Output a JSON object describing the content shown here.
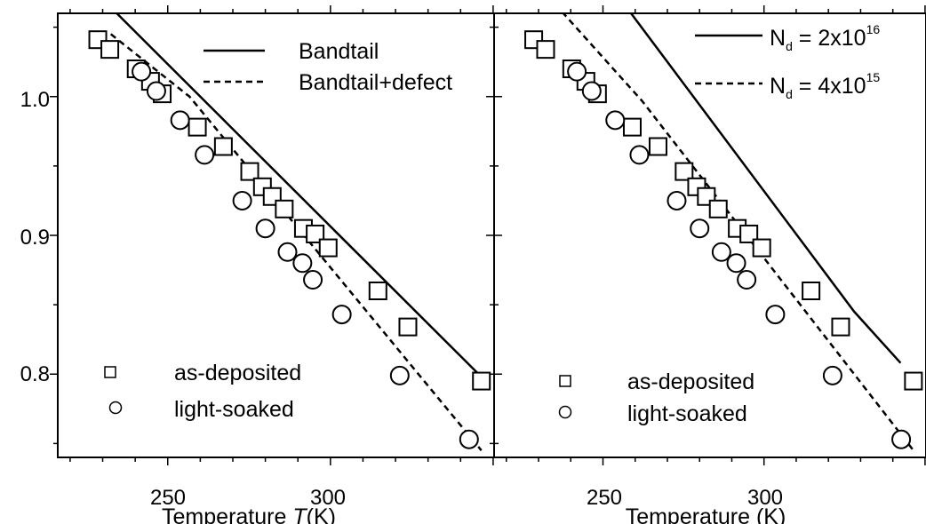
{
  "chart_data": [
    {
      "type": "scatter",
      "panel": "left",
      "xlabel": "Temperature",
      "xlabel_italic_symbol": "T",
      "xlabel_unit": "(K)",
      "ylabel": "",
      "xlim": [
        216.2,
        350.3
      ],
      "ylim": [
        0.74,
        1.06
      ],
      "xticks": [
        250,
        300
      ],
      "yticks": [
        0.8,
        0.9,
        1.0
      ],
      "ytick_labels": [
        "0.8",
        "0.9",
        "1.0"
      ],
      "xtick_labels": [
        "250",
        "300"
      ],
      "series": [
        {
          "name": "as-deposited",
          "marker": "square",
          "x": [
            228.5,
            232.2,
            240.3,
            244.7,
            248.3,
            259.1,
            267.1,
            275.2,
            279.1,
            282.1,
            285.8,
            291.7,
            295.3,
            299.3,
            314.6,
            323.8,
            346.4
          ],
          "y": [
            1.041,
            1.034,
            1.02,
            1.011,
            1.002,
            0.978,
            0.964,
            0.946,
            0.935,
            0.928,
            0.919,
            0.905,
            0.901,
            0.891,
            0.86,
            0.834,
            0.795
          ]
        },
        {
          "name": "light-soaked",
          "marker": "circle",
          "x": [
            241.9,
            246.5,
            253.8,
            261.3,
            272.9,
            280.0,
            286.8,
            291.4,
            294.6,
            303.5,
            321.3,
            342.6
          ],
          "y": [
            1.018,
            1.004,
            0.983,
            0.958,
            0.925,
            0.905,
            0.888,
            0.88,
            0.868,
            0.843,
            0.799,
            0.753
          ]
        }
      ],
      "lines": [
        {
          "name": "Bandtail",
          "style": "solid",
          "x": [
            233.9,
            346.4
          ],
          "y": [
            1.061,
            0.798
          ]
        },
        {
          "name": "Bandtail+defect",
          "style": "dashed",
          "x": [
            232.5,
            256.7,
            346.4
          ],
          "y": [
            1.045,
            1.0,
            0.745
          ]
        }
      ],
      "legend_lines": [
        "Bandtail",
        "Bandtail+defect"
      ],
      "legend_markers": [
        "as-deposited",
        "light-soaked"
      ]
    },
    {
      "type": "scatter",
      "panel": "right",
      "xlabel": "Temperature (K)",
      "ylabel": "",
      "xlim": [
        216.2,
        350.3
      ],
      "ylim": [
        0.74,
        1.06
      ],
      "xticks": [
        250,
        300
      ],
      "xtick_labels": [
        "250",
        "300"
      ],
      "series": [
        {
          "name": "as-deposited",
          "marker": "square",
          "x": [
            228.5,
            232.2,
            240.3,
            244.7,
            248.3,
            259.1,
            267.1,
            275.2,
            279.1,
            282.1,
            285.8,
            291.7,
            295.3,
            299.3,
            314.6,
            323.8,
            346.4
          ],
          "y": [
            1.041,
            1.034,
            1.02,
            1.011,
            1.002,
            0.978,
            0.964,
            0.946,
            0.935,
            0.928,
            0.919,
            0.905,
            0.901,
            0.891,
            0.86,
            0.834,
            0.795
          ]
        },
        {
          "name": "light-soaked",
          "marker": "circle",
          "x": [
            241.9,
            246.5,
            253.8,
            261.3,
            272.9,
            280.0,
            286.8,
            291.4,
            294.6,
            303.5,
            321.3,
            342.6
          ],
          "y": [
            1.018,
            1.004,
            0.983,
            0.958,
            0.925,
            0.905,
            0.888,
            0.88,
            0.868,
            0.843,
            0.799,
            0.753
          ]
        }
      ],
      "lines": [
        {
          "name": "N_d = 2x10^16",
          "style": "solid",
          "x": [
            258.4,
            328.0,
            342.4
          ],
          "y": [
            1.061,
            0.845,
            0.808
          ]
        },
        {
          "name": "N_d = 4x10^15",
          "style": "dashed",
          "x": [
            237.3,
            262.1,
            346.4
          ],
          "y": [
            1.061,
            0.997,
            0.745
          ]
        }
      ],
      "legend_lines": [
        {
          "prefix": "N",
          "sub": "d",
          "eq": " = 2x10",
          "sup": "16"
        },
        {
          "prefix": "N",
          "sub": "d",
          "eq": " = 4x10",
          "sup": "15"
        }
      ],
      "legend_markers": [
        "as-deposited",
        "light-soaked"
      ]
    }
  ]
}
